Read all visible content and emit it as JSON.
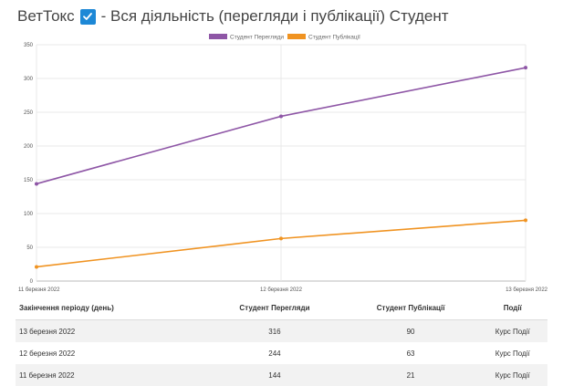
{
  "header": {
    "prefix": "ВетТокс",
    "suffix": "- Вся діяльність (перегляди і публікації) Студент"
  },
  "colors": {
    "views": "#8e56a6",
    "posts": "#f09321"
  },
  "chart_data": {
    "type": "line",
    "categories": [
      "11 березня 2022",
      "12 березня 2022",
      "13 березня 2022"
    ],
    "series": [
      {
        "name": "Студент Перегляди",
        "values": [
          144,
          244,
          316
        ]
      },
      {
        "name": "Студент Публікації",
        "values": [
          21,
          63,
          90
        ]
      }
    ],
    "y_ticks": [
      0,
      50,
      100,
      150,
      200,
      250,
      300,
      350
    ],
    "ylim": [
      0,
      350
    ],
    "legend": "top-center",
    "grid": true
  },
  "table": {
    "headers": [
      "Закінчення періоду (день)",
      "Студент Перегляди",
      "Студент Публікації",
      "Події"
    ],
    "rows": [
      [
        "13 березня 2022",
        "316",
        "90",
        "Курс Події"
      ],
      [
        "12 березня 2022",
        "244",
        "63",
        "Курс Події"
      ],
      [
        "11 березня 2022",
        "144",
        "21",
        "Курс Події"
      ]
    ]
  }
}
